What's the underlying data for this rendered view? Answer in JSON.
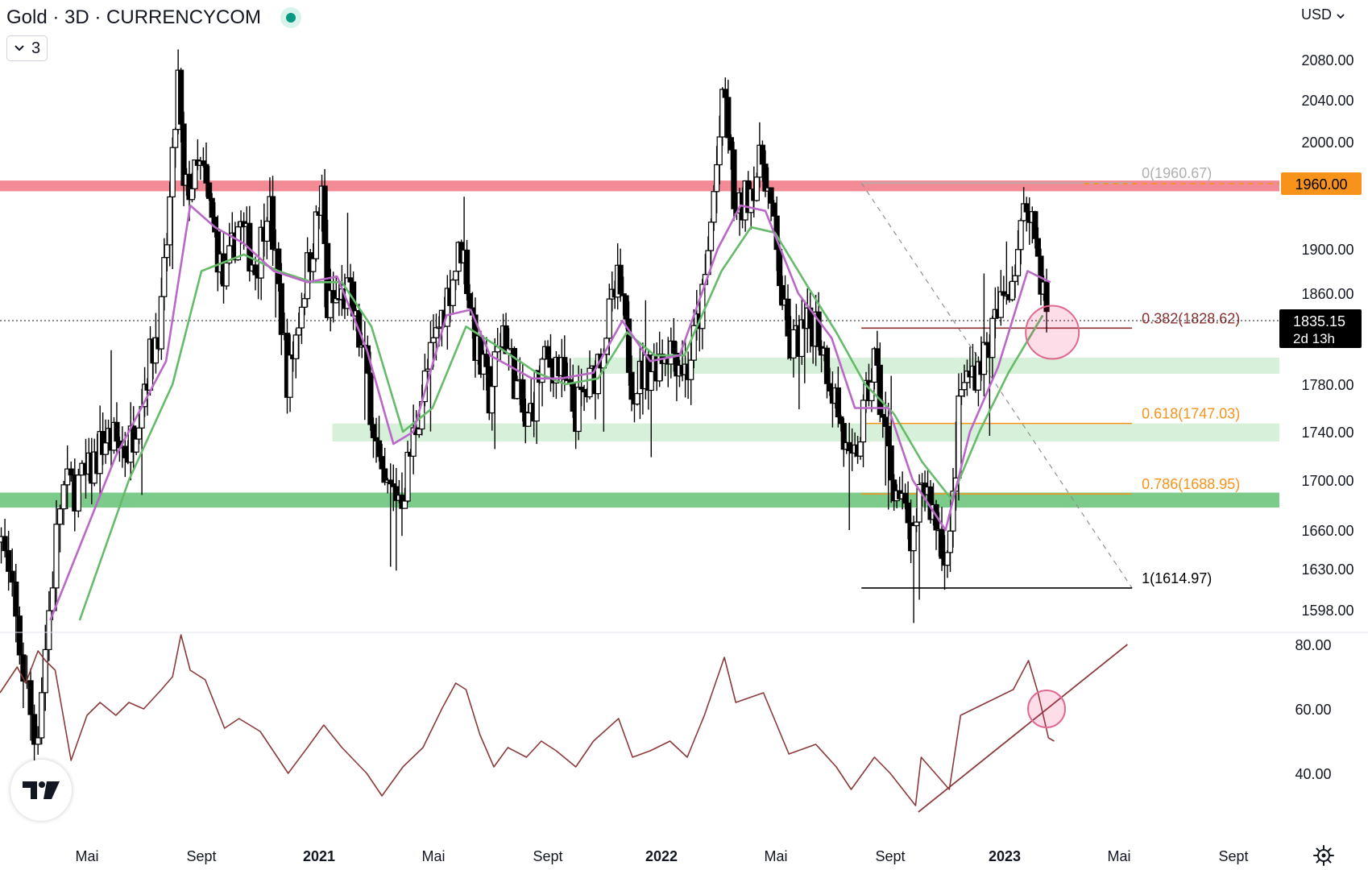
{
  "header": {
    "title": "Gold · 3D · CURRENCYCOM",
    "indicator_count": "3",
    "currency": "USD"
  },
  "colors": {
    "resistance_band": "#f28b95",
    "support_band_strong": "#7ccb8a",
    "support_band_light": "#d7f0d9",
    "ema_fast": "#ba68c8",
    "ema_slow": "#66bb6a",
    "rsi_line": "#8b3a3a",
    "fib_orange": "#f7931a",
    "price_label_bg": "#f7931a",
    "current_label_bg": "#000000",
    "candle": "#000000"
  },
  "icons": {
    "status": "market-open-dot-icon",
    "indicators_toggle": "chevron-down-icon",
    "currency_toggle": "chevron-down-icon",
    "logo": "tradingview-logo-icon",
    "settings": "gear-icon"
  },
  "chart_data": {
    "type": "candlestick",
    "symbol": "Gold",
    "interval": "3D",
    "exchange": "CURRENCYCOM",
    "price_axis": {
      "ticks": [
        "2080.00",
        "2040.00",
        "2000.00",
        "1960.00",
        "1900.00",
        "1860.00",
        "1835.15",
        "1780.00",
        "1740.00",
        "1700.00",
        "1660.00",
        "1630.00",
        "1598.00"
      ],
      "ylim": [
        1590,
        2095
      ]
    },
    "time_axis": {
      "ticks": [
        "Mai",
        "Sept",
        "2021",
        "Mai",
        "Sept",
        "2022",
        "Mai",
        "Sept",
        "2023",
        "Mai",
        "Sept"
      ],
      "bold_ticks": [
        "2021",
        "2022",
        "2023"
      ],
      "xlim": [
        "2020-02-20",
        "2023-11-30"
      ]
    },
    "last_price": {
      "value": "1835.15",
      "countdown": "2d 13h"
    },
    "highlighted_level": {
      "value": "1960.00"
    },
    "close_path": [
      [
        "2020-03-05",
        1580
      ],
      [
        "2020-03-20",
        1495
      ],
      [
        "2020-04-10",
        1690
      ],
      [
        "2020-05-01",
        1700
      ],
      [
        "2020-05-20",
        1735
      ],
      [
        "2020-06-15",
        1725
      ],
      [
        "2020-07-01",
        1780
      ],
      [
        "2020-07-20",
        1840
      ],
      [
        "2020-08-01",
        1975
      ],
      [
        "2020-08-07",
        2060
      ],
      [
        "2020-08-13",
        1950
      ],
      [
        "2020-09-01",
        1975
      ],
      [
        "2020-09-25",
        1865
      ],
      [
        "2020-10-10",
        1925
      ],
      [
        "2020-10-28",
        1880
      ],
      [
        "2020-11-09",
        1950
      ],
      [
        "2020-11-30",
        1780
      ],
      [
        "2020-12-15",
        1860
      ],
      [
        "2021-01-06",
        1955
      ],
      [
        "2021-01-08",
        1845
      ],
      [
        "2021-02-01",
        1860
      ],
      [
        "2021-02-20",
        1790
      ],
      [
        "2021-03-08",
        1690
      ],
      [
        "2021-03-30",
        1690
      ],
      [
        "2021-04-20",
        1775
      ],
      [
        "2021-05-10",
        1840
      ],
      [
        "2021-06-01",
        1905
      ],
      [
        "2021-06-16",
        1810
      ],
      [
        "2021-06-30",
        1770
      ],
      [
        "2021-07-15",
        1830
      ],
      [
        "2021-08-09",
        1740
      ],
      [
        "2021-08-25",
        1795
      ],
      [
        "2021-09-10",
        1800
      ],
      [
        "2021-09-30",
        1755
      ],
      [
        "2021-10-20",
        1785
      ],
      [
        "2021-11-16",
        1870
      ],
      [
        "2021-12-01",
        1780
      ],
      [
        "2021-12-20",
        1795
      ],
      [
        "2022-01-10",
        1815
      ],
      [
        "2022-01-28",
        1790
      ],
      [
        "2022-02-15",
        1860
      ],
      [
        "2022-03-08",
        2050
      ],
      [
        "2022-03-20",
        1925
      ],
      [
        "2022-04-18",
        1985
      ],
      [
        "2022-05-15",
        1810
      ],
      [
        "2022-06-13",
        1835
      ],
      [
        "2022-07-05",
        1765
      ],
      [
        "2022-07-21",
        1700
      ],
      [
        "2022-08-15",
        1800
      ],
      [
        "2022-09-01",
        1710
      ],
      [
        "2022-09-28",
        1640
      ],
      [
        "2022-10-04",
        1705
      ],
      [
        "2022-11-03",
        1635
      ],
      [
        "2022-11-15",
        1775
      ],
      [
        "2022-12-13",
        1810
      ],
      [
        "2023-01-10",
        1880
      ],
      [
        "2023-01-26",
        1950
      ],
      [
        "2023-02-10",
        1865
      ],
      [
        "2023-02-16",
        1835
      ]
    ],
    "ema_fast_path": [
      [
        "2020-04-01",
        1590
      ],
      [
        "2020-06-01",
        1720
      ],
      [
        "2020-07-25",
        1800
      ],
      [
        "2020-08-20",
        1940
      ],
      [
        "2020-09-15",
        1920
      ],
      [
        "2020-10-15",
        1905
      ],
      [
        "2020-11-15",
        1880
      ],
      [
        "2020-12-20",
        1870
      ],
      [
        "2021-01-20",
        1875
      ],
      [
        "2021-02-20",
        1810
      ],
      [
        "2021-03-20",
        1730
      ],
      [
        "2021-04-10",
        1740
      ],
      [
        "2021-05-15",
        1840
      ],
      [
        "2021-06-10",
        1845
      ],
      [
        "2021-07-01",
        1805
      ],
      [
        "2021-08-15",
        1785
      ],
      [
        "2021-09-15",
        1785
      ],
      [
        "2021-10-20",
        1790
      ],
      [
        "2021-11-20",
        1835
      ],
      [
        "2021-12-20",
        1800
      ],
      [
        "2022-01-20",
        1805
      ],
      [
        "2022-03-01",
        1900
      ],
      [
        "2022-03-25",
        1940
      ],
      [
        "2022-04-20",
        1935
      ],
      [
        "2022-05-25",
        1860
      ],
      [
        "2022-06-30",
        1820
      ],
      [
        "2022-07-25",
        1760
      ],
      [
        "2022-08-30",
        1760
      ],
      [
        "2022-09-25",
        1700
      ],
      [
        "2022-10-30",
        1660
      ],
      [
        "2022-11-25",
        1740
      ],
      [
        "2022-12-25",
        1795
      ],
      [
        "2023-01-25",
        1880
      ],
      [
        "2023-02-18",
        1870
      ]
    ],
    "ema_slow_path": [
      [
        "2020-04-25",
        1590
      ],
      [
        "2020-06-15",
        1700
      ],
      [
        "2020-08-01",
        1780
      ],
      [
        "2020-09-01",
        1880
      ],
      [
        "2020-10-15",
        1895
      ],
      [
        "2020-11-20",
        1880
      ],
      [
        "2020-12-25",
        1870
      ],
      [
        "2021-01-25",
        1870
      ],
      [
        "2021-02-25",
        1830
      ],
      [
        "2021-03-30",
        1740
      ],
      [
        "2021-04-30",
        1760
      ],
      [
        "2021-06-05",
        1830
      ],
      [
        "2021-07-05",
        1815
      ],
      [
        "2021-08-20",
        1790
      ],
      [
        "2021-09-20",
        1780
      ],
      [
        "2021-10-25",
        1785
      ],
      [
        "2021-11-25",
        1825
      ],
      [
        "2021-12-25",
        1805
      ],
      [
        "2022-01-25",
        1805
      ],
      [
        "2022-03-05",
        1880
      ],
      [
        "2022-04-05",
        1920
      ],
      [
        "2022-04-30",
        1915
      ],
      [
        "2022-06-05",
        1865
      ],
      [
        "2022-07-05",
        1825
      ],
      [
        "2022-08-05",
        1780
      ],
      [
        "2022-09-05",
        1755
      ],
      [
        "2022-10-05",
        1715
      ],
      [
        "2022-11-05",
        1685
      ],
      [
        "2022-12-05",
        1740
      ],
      [
        "2023-01-05",
        1790
      ],
      [
        "2023-02-10",
        1840
      ]
    ],
    "zones": [
      {
        "kind": "resistance",
        "from": 1953,
        "to": 1963,
        "start": "2020-02-20",
        "end": "2023-11-30"
      },
      {
        "kind": "support",
        "from": 1678,
        "to": 1690,
        "start": "2020-02-20",
        "end": "2023-11-30"
      },
      {
        "kind": "support-light",
        "from": 1732,
        "to": 1747,
        "start": "2021-01-15",
        "end": "2023-11-25"
      },
      {
        "kind": "support-light",
        "from": 1789,
        "to": 1803,
        "start": "2021-09-28",
        "end": "2023-11-25"
      }
    ],
    "fibonacci": {
      "start": "2022-08-01",
      "end": "2023-05-15",
      "levels": [
        {
          "ratio": 0,
          "value": 1960.67,
          "label": "0(1960.67)",
          "color": "#b0b0b0"
        },
        {
          "ratio": 0.382,
          "value": 1828.62,
          "label": "0.382(1828.62)",
          "color": "#8b2f2f"
        },
        {
          "ratio": 0.618,
          "value": 1747.03,
          "label": "0.618(1747.03)",
          "color": "#f7931a"
        },
        {
          "ratio": 0.786,
          "value": 1688.95,
          "label": "0.786(1688.95)",
          "color": "#f7931a"
        },
        {
          "ratio": 1,
          "value": 1614.97,
          "label": "1(1614.97)",
          "color": "#000000"
        }
      ]
    },
    "markers": [
      {
        "pane": "price",
        "x": "2023-02-20",
        "y": 1825,
        "shape": "circle"
      },
      {
        "pane": "rsi",
        "x": "2023-02-14",
        "y": 60,
        "shape": "circle"
      }
    ],
    "rsi": {
      "ticks": [
        "80.00",
        "60.00",
        "40.00"
      ],
      "ylim": [
        25,
        85
      ],
      "path": [
        [
          "2020-02-20",
          65
        ],
        [
          "2020-03-05",
          73
        ],
        [
          "2020-03-12",
          68
        ],
        [
          "2020-03-22",
          78
        ],
        [
          "2020-03-28",
          75
        ],
        [
          "2020-04-05",
          72
        ],
        [
          "2020-04-18",
          44
        ],
        [
          "2020-05-01",
          58
        ],
        [
          "2020-05-15",
          62
        ],
        [
          "2020-06-01",
          58
        ],
        [
          "2020-06-15",
          62
        ],
        [
          "2020-07-01",
          60
        ],
        [
          "2020-07-20",
          66
        ],
        [
          "2020-08-01",
          70
        ],
        [
          "2020-08-10",
          83
        ],
        [
          "2020-08-20",
          72
        ],
        [
          "2020-09-05",
          69
        ],
        [
          "2020-09-25",
          54
        ],
        [
          "2020-10-10",
          57
        ],
        [
          "2020-11-01",
          53
        ],
        [
          "2020-11-30",
          40
        ],
        [
          "2020-12-20",
          48
        ],
        [
          "2021-01-06",
          55
        ],
        [
          "2021-01-25",
          48
        ],
        [
          "2021-02-20",
          40
        ],
        [
          "2021-03-08",
          33
        ],
        [
          "2021-03-30",
          42
        ],
        [
          "2021-04-20",
          48
        ],
        [
          "2021-05-10",
          60
        ],
        [
          "2021-05-25",
          68
        ],
        [
          "2021-06-05",
          66
        ],
        [
          "2021-06-20",
          52
        ],
        [
          "2021-07-05",
          42
        ],
        [
          "2021-07-20",
          48
        ],
        [
          "2021-08-09",
          45
        ],
        [
          "2021-08-25",
          50
        ],
        [
          "2021-09-10",
          47
        ],
        [
          "2021-10-01",
          42
        ],
        [
          "2021-10-20",
          50
        ],
        [
          "2021-11-16",
          57
        ],
        [
          "2021-12-01",
          45
        ],
        [
          "2021-12-20",
          47
        ],
        [
          "2022-01-10",
          50
        ],
        [
          "2022-01-28",
          45
        ],
        [
          "2022-02-15",
          58
        ],
        [
          "2022-03-08",
          76
        ],
        [
          "2022-03-20",
          62
        ],
        [
          "2022-04-18",
          65
        ],
        [
          "2022-05-15",
          46
        ],
        [
          "2022-06-13",
          49
        ],
        [
          "2022-07-05",
          42
        ],
        [
          "2022-07-21",
          35
        ],
        [
          "2022-08-15",
          45
        ],
        [
          "2022-09-01",
          40
        ],
        [
          "2022-09-28",
          30
        ],
        [
          "2022-10-04",
          45
        ],
        [
          "2022-11-03",
          35
        ],
        [
          "2022-11-15",
          58
        ],
        [
          "2022-12-13",
          62
        ],
        [
          "2023-01-10",
          66
        ],
        [
          "2023-01-26",
          75
        ],
        [
          "2023-02-05",
          65
        ],
        [
          "2023-02-16",
          51
        ],
        [
          "2023-02-22",
          50
        ]
      ],
      "trendline": [
        [
          "2022-10-01",
          28
        ],
        [
          "2023-05-10",
          80
        ]
      ]
    }
  }
}
